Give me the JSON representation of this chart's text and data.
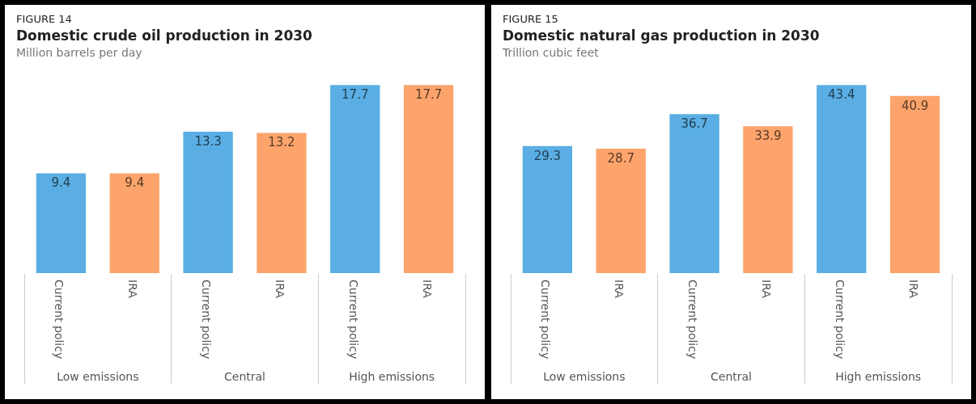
{
  "chart_data": [
    {
      "type": "bar",
      "annotations": [
        "FIGURE 14"
      ],
      "title": "Domestic crude oil production in 2030",
      "subtitle": "Million barrels per day",
      "categories": [
        "Low emissions",
        "Central",
        "High emissions"
      ],
      "series": [
        {
          "name": "Current policy",
          "color": "#5aaee3",
          "values": [
            9.4,
            13.3,
            17.7
          ]
        },
        {
          "name": "IRA",
          "color": "#fca46c",
          "values": [
            9.4,
            13.2,
            17.7
          ]
        }
      ],
      "data_labels": true,
      "grid": false,
      "legend": false
    },
    {
      "type": "bar",
      "annotations": [
        "FIGURE 15"
      ],
      "title": "Domestic natural gas production in 2030",
      "subtitle": "Trillion cubic feet",
      "categories": [
        "Low emissions",
        "Central",
        "High emissions"
      ],
      "series": [
        {
          "name": "Current policy",
          "color": "#5aaee3",
          "values": [
            29.3,
            36.7,
            43.4
          ]
        },
        {
          "name": "IRA",
          "color": "#fca46c",
          "values": [
            28.7,
            33.9,
            40.9
          ]
        }
      ],
      "data_labels": true,
      "grid": false,
      "legend": false
    }
  ]
}
